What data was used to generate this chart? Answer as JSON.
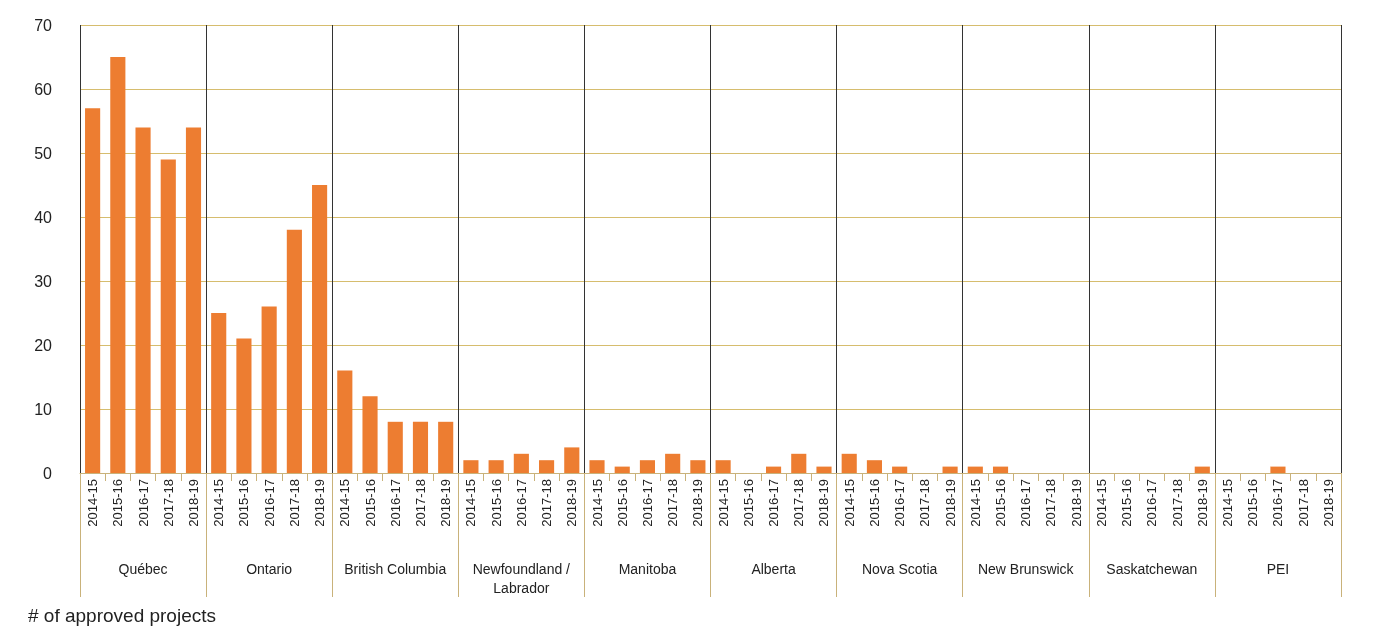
{
  "chart_data": {
    "type": "bar",
    "ylabel": "# of approved projects",
    "categories": [
      "Québec",
      "Ontario",
      "British Columbia",
      "Newfoundland /Labrador",
      "Manitoba",
      "Alberta",
      "Nova Scotia",
      "New Brunswick",
      "Saskatchewan",
      "PEI"
    ],
    "series": [
      {
        "name": "2014-15",
        "color": "#ed7d31",
        "values": [
          57,
          25,
          16,
          2,
          2,
          2,
          3,
          1,
          0,
          0
        ]
      },
      {
        "name": "2015-16",
        "color": "#ed7d31",
        "values": [
          65,
          21,
          12,
          2,
          1,
          0,
          2,
          1,
          0,
          0
        ]
      },
      {
        "name": "2016-17",
        "color": "#ed7d31",
        "values": [
          54,
          26,
          8,
          3,
          2,
          1,
          1,
          0,
          0,
          1
        ]
      },
      {
        "name": "2017-18",
        "color": "#ed7d31",
        "values": [
          49,
          38,
          8,
          2,
          3,
          3,
          0,
          0,
          0,
          0
        ]
      },
      {
        "name": "2018-19",
        "color": "#ed7d31",
        "values": [
          54,
          45,
          8,
          4,
          2,
          1,
          1,
          0,
          1,
          0
        ]
      }
    ],
    "ylim": [
      0,
      70
    ],
    "yticks": [
      0,
      10,
      20,
      30,
      40,
      50,
      60,
      70
    ],
    "grid": "y"
  }
}
